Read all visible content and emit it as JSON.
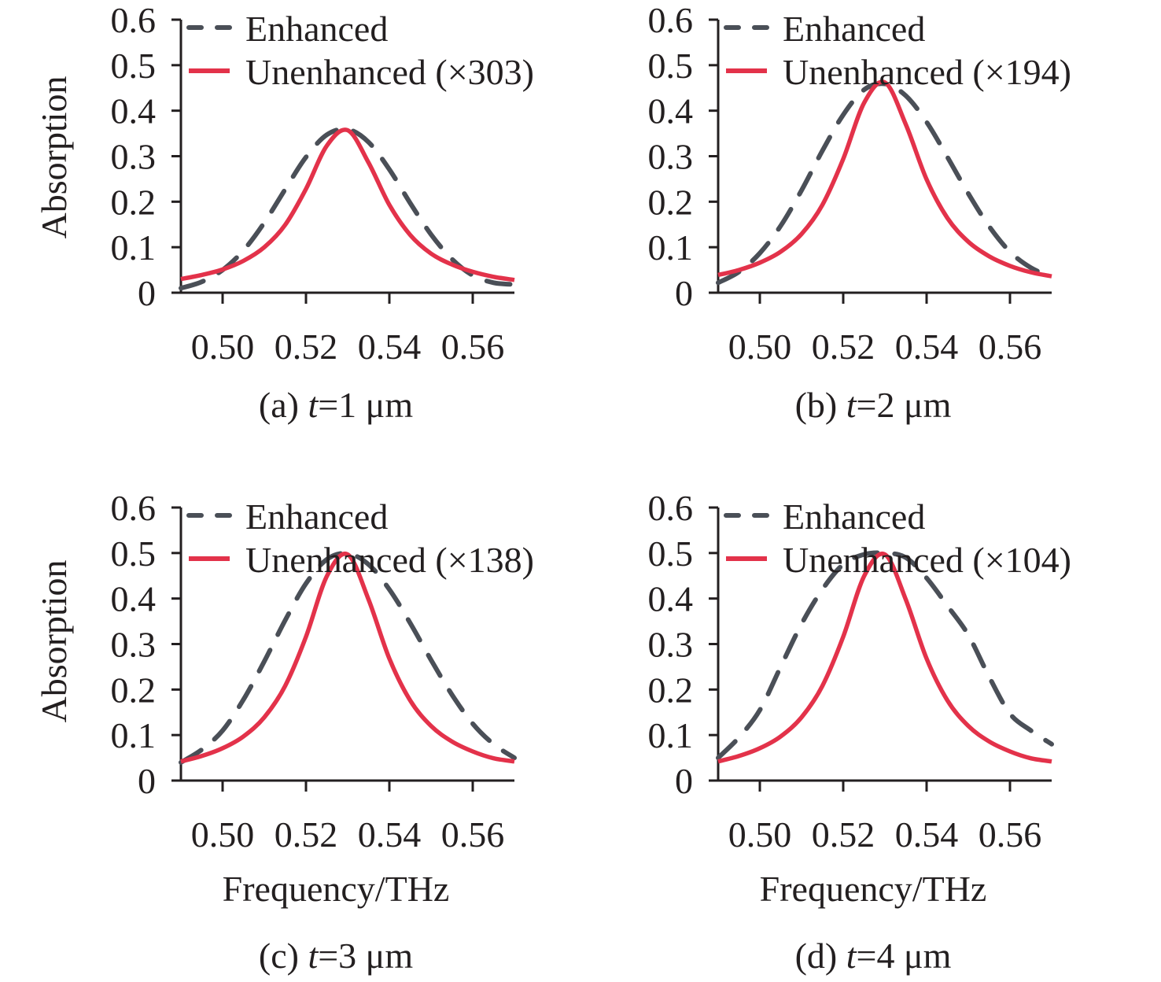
{
  "colors": {
    "enhanced": "#4a4f57",
    "unenhanced": "#e3324a",
    "axis": "#231f20"
  },
  "chart_data": [
    {
      "type": "line",
      "caption": {
        "prefix": "(a) ",
        "var": "t",
        "suffix": "=1 μm"
      },
      "xlabel": "",
      "ylabel": "Absorption",
      "xlim": [
        0.49,
        0.57
      ],
      "ylim": [
        0,
        0.6
      ],
      "xticks": [
        "0.50",
        "0.52",
        "0.54",
        "0.56"
      ],
      "yticks": [
        "0",
        "0.1",
        "0.2",
        "0.3",
        "0.4",
        "0.5",
        "0.6"
      ],
      "grid": false,
      "legend": "top-left",
      "x": [
        0.49,
        0.495,
        0.5,
        0.505,
        0.51,
        0.515,
        0.52,
        0.525,
        0.53,
        0.535,
        0.54,
        0.545,
        0.55,
        0.555,
        0.56,
        0.565,
        0.57
      ],
      "series": [
        {
          "name": "Enhanced",
          "style": "dashed",
          "values": [
            0.01,
            0.024,
            0.05,
            0.093,
            0.154,
            0.227,
            0.298,
            0.347,
            0.359,
            0.331,
            0.271,
            0.197,
            0.128,
            0.074,
            0.038,
            0.022,
            0.018
          ]
        },
        {
          "name": "Unenhanced (×303)",
          "style": "solid",
          "values": [
            0.03,
            0.039,
            0.051,
            0.07,
            0.1,
            0.149,
            0.228,
            0.323,
            0.357,
            0.286,
            0.193,
            0.127,
            0.086,
            0.062,
            0.046,
            0.035,
            0.028
          ]
        }
      ]
    },
    {
      "type": "line",
      "caption": {
        "prefix": "(b) ",
        "var": "t",
        "suffix": "=2 μm"
      },
      "xlabel": "",
      "ylabel": "",
      "xlim": [
        0.49,
        0.57
      ],
      "ylim": [
        0,
        0.6
      ],
      "xticks": [
        "0.50",
        "0.52",
        "0.54",
        "0.56"
      ],
      "yticks": [
        "0",
        "0.1",
        "0.2",
        "0.3",
        "0.4",
        "0.5",
        "0.6"
      ],
      "grid": false,
      "legend": "top-left",
      "x": [
        0.49,
        0.495,
        0.5,
        0.505,
        0.51,
        0.515,
        0.52,
        0.525,
        0.53,
        0.535,
        0.54,
        0.545,
        0.55,
        0.555,
        0.56,
        0.565,
        0.57
      ],
      "series": [
        {
          "name": "Enhanced",
          "style": "dashed",
          "values": [
            0.022,
            0.046,
            0.087,
            0.147,
            0.225,
            0.312,
            0.391,
            0.446,
            0.459,
            0.433,
            0.375,
            0.298,
            0.218,
            0.146,
            0.09,
            0.055,
            0.035
          ]
        },
        {
          "name": "Unenhanced (×194)",
          "style": "solid",
          "values": [
            0.039,
            0.05,
            0.066,
            0.09,
            0.129,
            0.193,
            0.294,
            0.417,
            0.462,
            0.37,
            0.249,
            0.164,
            0.112,
            0.08,
            0.059,
            0.045,
            0.036
          ]
        }
      ]
    },
    {
      "type": "line",
      "caption": {
        "prefix": "(c) ",
        "var": "t",
        "suffix": "=3 μm"
      },
      "xlabel": "Frequency/THz",
      "ylabel": "Absorption",
      "xlim": [
        0.49,
        0.57
      ],
      "ylim": [
        0,
        0.6
      ],
      "xticks": [
        "0.50",
        "0.52",
        "0.54",
        "0.56"
      ],
      "yticks": [
        "0",
        "0.1",
        "0.2",
        "0.3",
        "0.4",
        "0.5",
        "0.6"
      ],
      "grid": false,
      "legend": "top-left",
      "x": [
        0.49,
        0.495,
        0.5,
        0.505,
        0.51,
        0.515,
        0.52,
        0.525,
        0.53,
        0.535,
        0.54,
        0.545,
        0.55,
        0.555,
        0.56,
        0.565,
        0.57
      ],
      "series": [
        {
          "name": "Enhanced",
          "style": "dashed",
          "values": [
            0.04,
            0.068,
            0.11,
            0.178,
            0.262,
            0.352,
            0.433,
            0.486,
            0.499,
            0.475,
            0.42,
            0.346,
            0.265,
            0.189,
            0.125,
            0.08,
            0.05
          ]
        },
        {
          "name": "Unenhanced (×138)",
          "style": "solid",
          "values": [
            0.042,
            0.054,
            0.071,
            0.097,
            0.139,
            0.208,
            0.316,
            0.449,
            0.497,
            0.398,
            0.268,
            0.176,
            0.12,
            0.086,
            0.064,
            0.049,
            0.042
          ]
        }
      ]
    },
    {
      "type": "line",
      "caption": {
        "prefix": "(d) ",
        "var": "t",
        "suffix": "=4 μm"
      },
      "xlabel": "Frequency/THz",
      "ylabel": "",
      "xlim": [
        0.49,
        0.57
      ],
      "ylim": [
        0,
        0.6
      ],
      "xticks": [
        "0.50",
        "0.52",
        "0.54",
        "0.56"
      ],
      "yticks": [
        "0",
        "0.1",
        "0.2",
        "0.3",
        "0.4",
        "0.5",
        "0.6"
      ],
      "grid": false,
      "legend": "top-left",
      "x": [
        0.49,
        0.495,
        0.5,
        0.505,
        0.51,
        0.515,
        0.52,
        0.525,
        0.53,
        0.535,
        0.54,
        0.545,
        0.55,
        0.555,
        0.56,
        0.565,
        0.57
      ],
      "series": [
        {
          "name": "Enhanced",
          "style": "dashed",
          "values": [
            0.05,
            0.095,
            0.155,
            0.25,
            0.344,
            0.42,
            0.475,
            0.497,
            0.5,
            0.49,
            0.445,
            0.384,
            0.32,
            0.228,
            0.147,
            0.11,
            0.08
          ]
        },
        {
          "name": "Unenhanced (×104)",
          "style": "solid",
          "values": [
            0.042,
            0.054,
            0.071,
            0.097,
            0.139,
            0.208,
            0.316,
            0.449,
            0.497,
            0.398,
            0.268,
            0.176,
            0.12,
            0.086,
            0.064,
            0.049,
            0.042
          ]
        }
      ]
    }
  ]
}
